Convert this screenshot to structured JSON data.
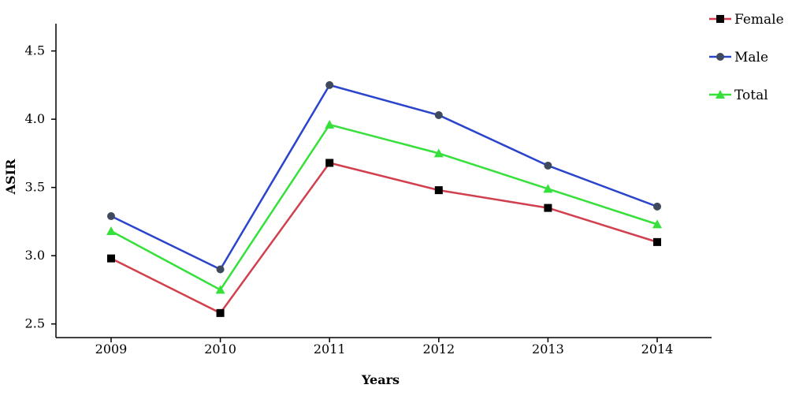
{
  "chart_data": {
    "type": "line",
    "title": "",
    "xlabel": "Years",
    "ylabel": "ASIR",
    "categories": [
      "2009",
      "2010",
      "2011",
      "2012",
      "2013",
      "2014"
    ],
    "ylim": [
      2.4,
      4.7
    ],
    "yticks": [
      "2.5",
      "3.0",
      "3.5",
      "4.0",
      "4.5"
    ],
    "grid": false,
    "legend_position": "top-right",
    "series": [
      {
        "name": "Female",
        "color": "#d2404f",
        "marker": "square",
        "marker_color": "#000000",
        "values": [
          2.98,
          2.58,
          3.68,
          3.48,
          3.35,
          3.1
        ]
      },
      {
        "name": "Male",
        "color": "#2a44cc",
        "marker": "circle",
        "marker_color": "#3f4a5c",
        "values": [
          3.29,
          2.9,
          4.25,
          4.03,
          3.66,
          3.36
        ]
      },
      {
        "name": "Total",
        "color": "#36e03a",
        "marker": "triangle",
        "marker_color": "#36e03a",
        "values": [
          3.18,
          2.75,
          3.96,
          3.75,
          3.49,
          3.23
        ]
      }
    ]
  }
}
